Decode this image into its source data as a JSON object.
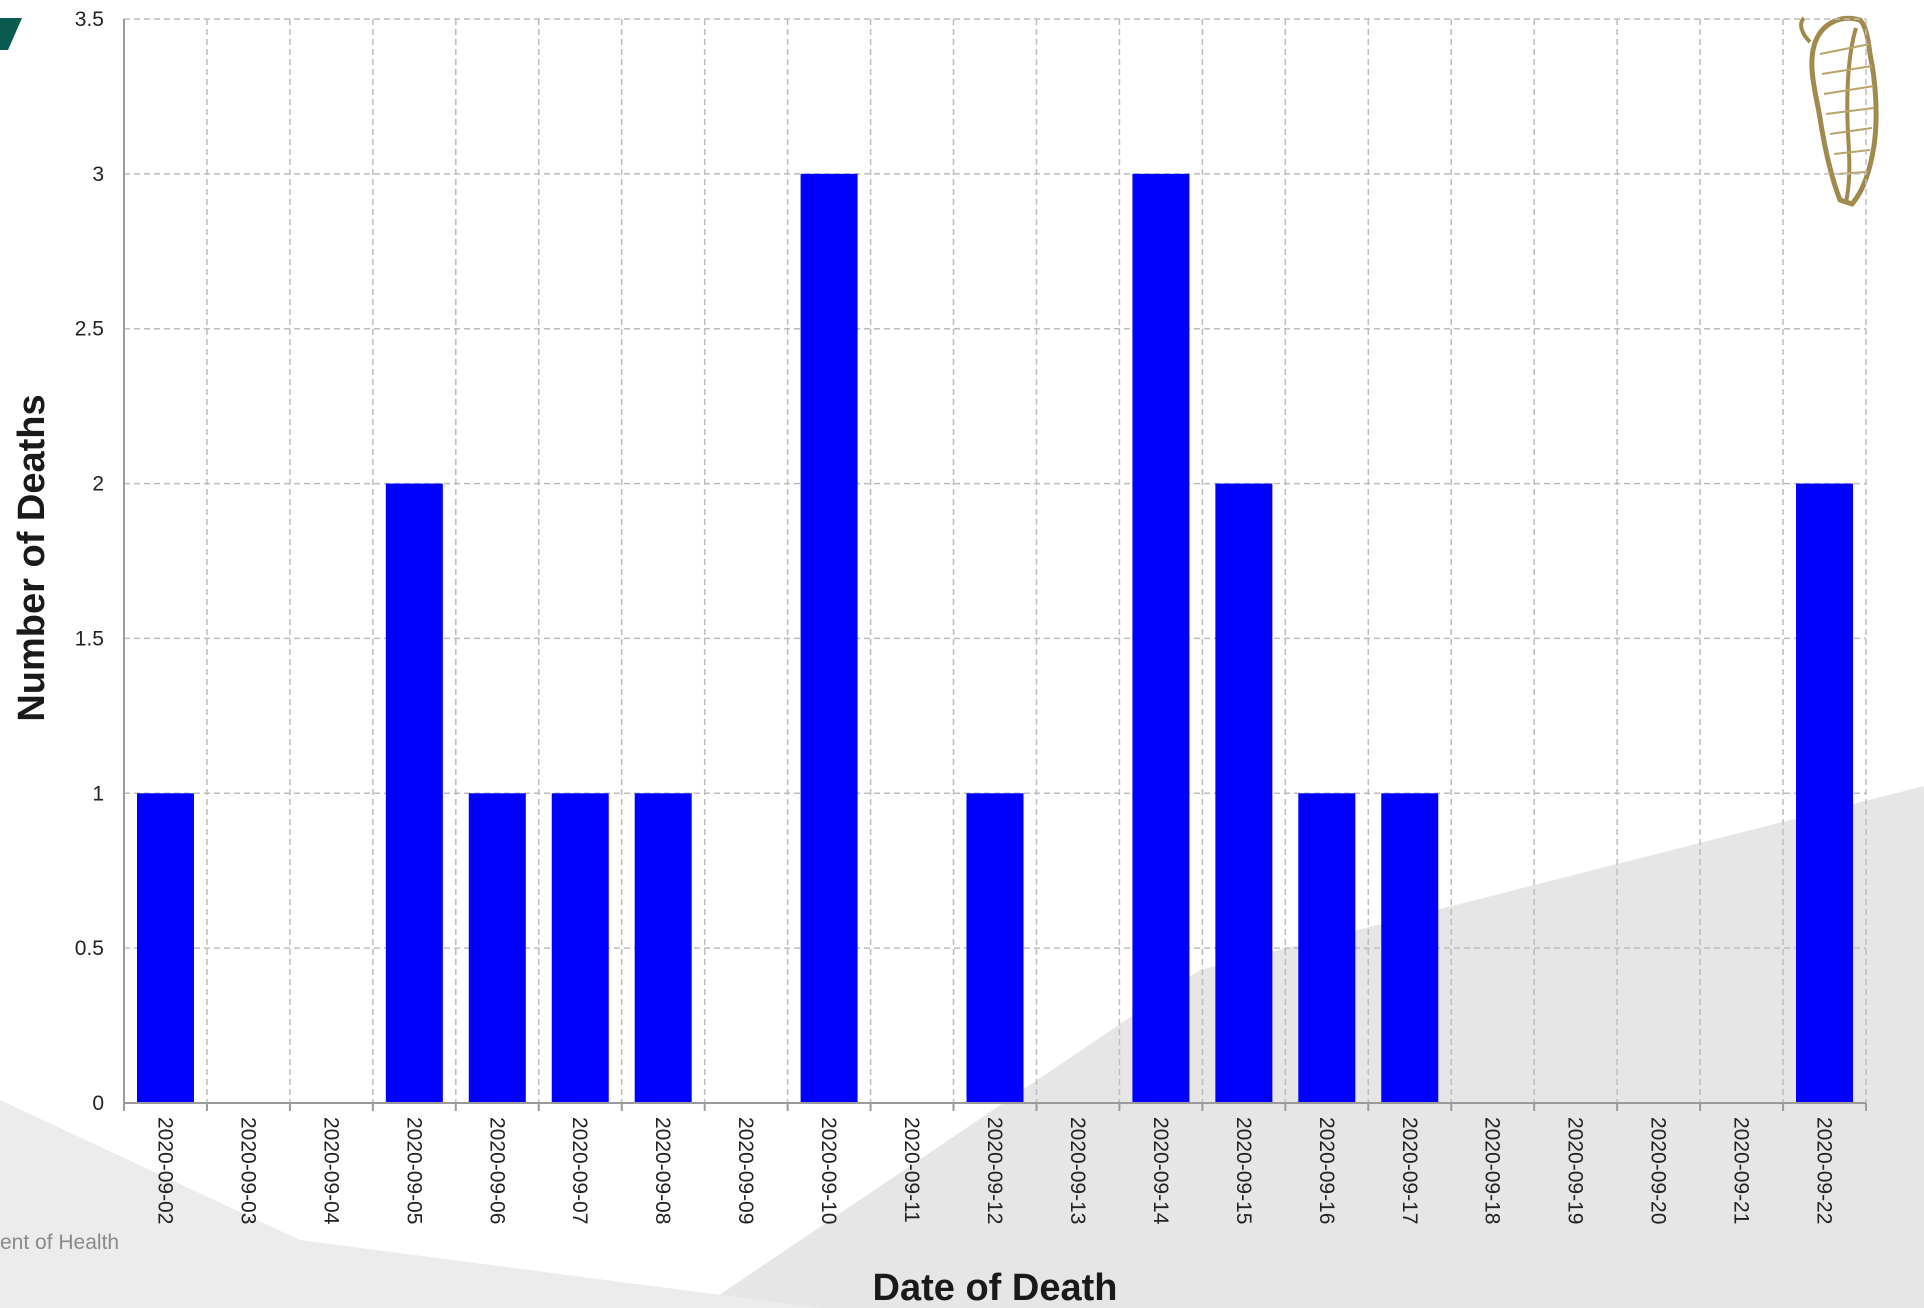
{
  "footer": {
    "organisation_fragment": "ent of Health"
  },
  "logo": {
    "name": "harp-emblem-icon"
  },
  "colors": {
    "bar": "#0000ff",
    "grid": "#bdbdbd",
    "background_shape": "#e6e6e6",
    "accent": "#0a5b4f",
    "emblem": "#a08a4d"
  },
  "chart_data": {
    "type": "bar",
    "title": "",
    "xlabel": "Date of Death",
    "ylabel": "Number of Deaths",
    "categories": [
      "2020-09-02",
      "2020-09-03",
      "2020-09-04",
      "2020-09-05",
      "2020-09-06",
      "2020-09-07",
      "2020-09-08",
      "2020-09-09",
      "2020-09-10",
      "2020-09-11",
      "2020-09-12",
      "2020-09-13",
      "2020-09-14",
      "2020-09-15",
      "2020-09-16",
      "2020-09-17",
      "2020-09-18",
      "2020-09-19",
      "2020-09-20",
      "2020-09-21",
      "2020-09-22"
    ],
    "values": [
      1,
      0,
      0,
      2,
      1,
      1,
      1,
      0,
      3,
      0,
      1,
      0,
      3,
      2,
      1,
      1,
      0,
      0,
      0,
      0,
      2
    ],
    "ylim": [
      0,
      3.5
    ],
    "yticks": [
      "0",
      "0.5",
      "1",
      "1.5",
      "2",
      "2.5",
      "3",
      "3.5"
    ],
    "grid": true,
    "legend": "none"
  }
}
